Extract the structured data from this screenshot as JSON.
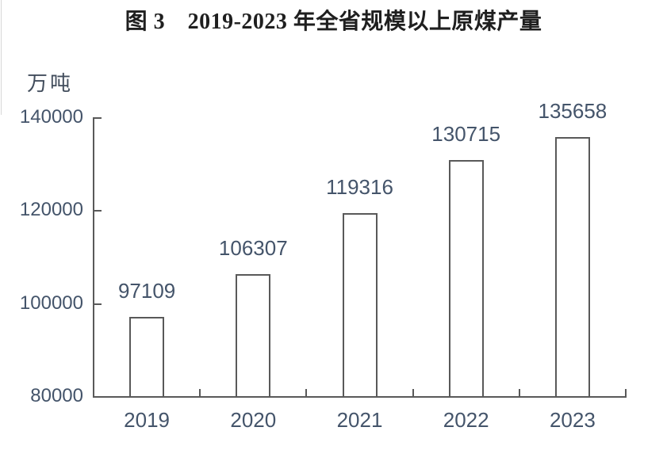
{
  "page": {
    "background": "#ffffff"
  },
  "chart_data": {
    "type": "bar",
    "title": "图 3　2019-2023 年全省规模以上原煤产量",
    "ylabel": "万吨",
    "xlabel": "",
    "categories": [
      "2019",
      "2020",
      "2021",
      "2022",
      "2023"
    ],
    "values": [
      97109,
      106307,
      119316,
      130715,
      135658
    ],
    "data_labels": [
      "97109",
      "106307",
      "119316",
      "130715",
      "135658"
    ],
    "ylim": [
      80000,
      140000
    ],
    "y_ticks": [
      80000,
      100000,
      120000,
      140000
    ],
    "y_tick_labels": [
      "80000",
      "100000",
      "120000",
      "140000"
    ],
    "grid": false,
    "legend_position": "none",
    "colors": {
      "bar_fill": "#ffffff",
      "bar_stroke": "#595959",
      "axis": "#595959",
      "value_label_text": "#44546a",
      "tick_label_text": "#44546a",
      "title_text": "#1f1f1f"
    }
  }
}
